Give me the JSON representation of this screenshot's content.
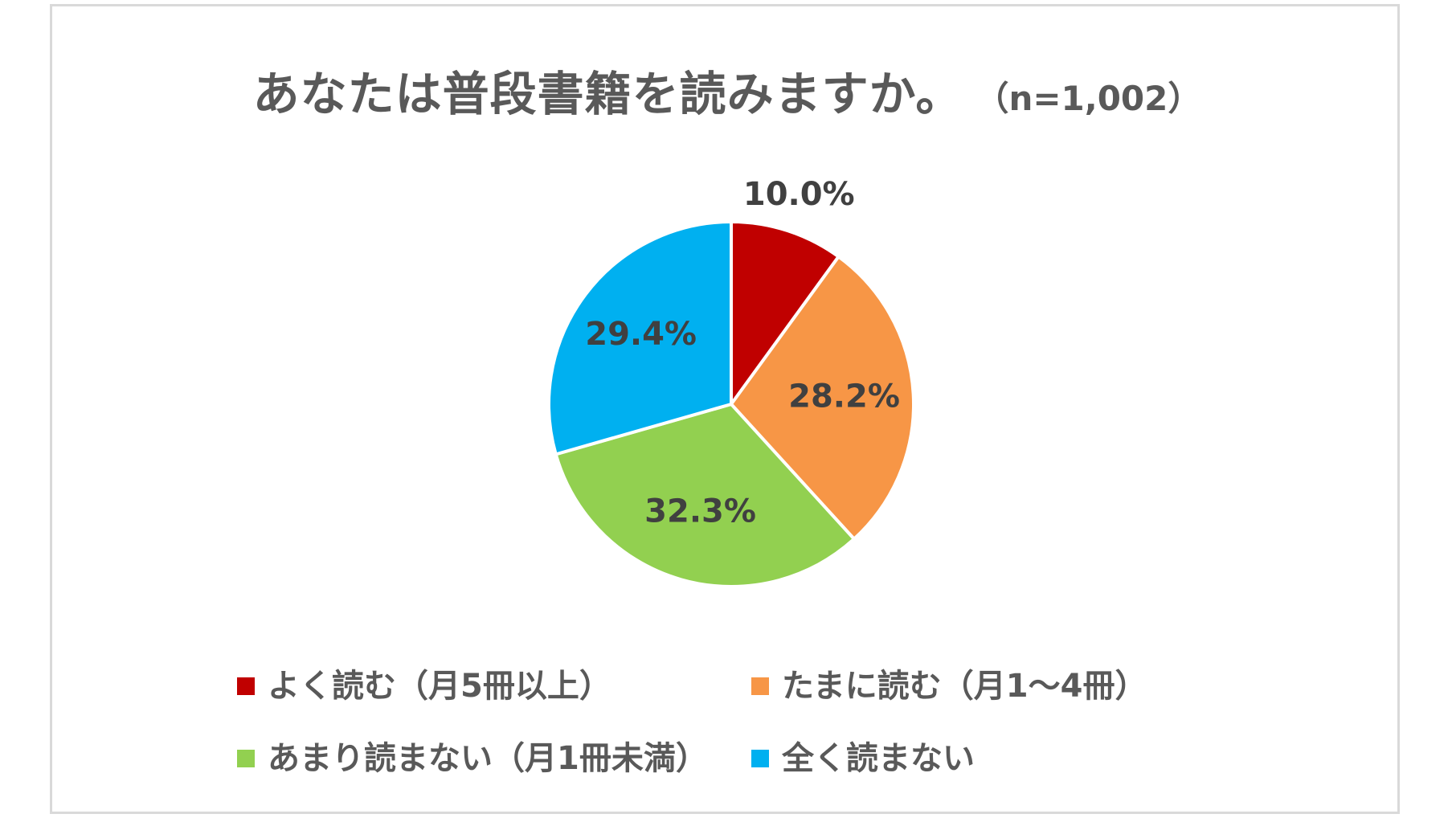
{
  "chart_data": {
    "type": "pie",
    "title": "あなたは普段書籍を読みますか。",
    "subtitle": "（n=1,002）",
    "categories": [
      "よく読む（月5冊以上）",
      "たまに読む（月1～4冊）",
      "あまり読まない（月1冊未満）",
      "全く読まない"
    ],
    "values": [
      10.0,
      28.2,
      32.3,
      29.4
    ],
    "value_labels": [
      "10.0%",
      "28.2%",
      "32.3%",
      "29.4%"
    ],
    "colors": [
      "#C00000",
      "#F79646",
      "#92D050",
      "#00B0F0"
    ],
    "legend": "bottom",
    "start_angle": "12 o'clock, clockwise"
  }
}
